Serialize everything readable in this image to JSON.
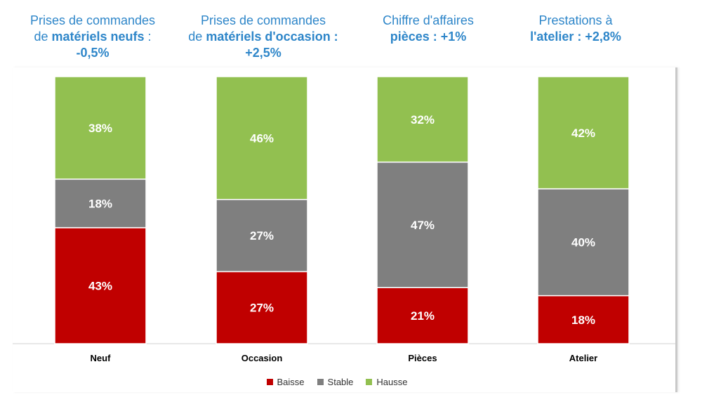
{
  "headers": [
    {
      "line1": "Prises de commandes",
      "line2_pre": "de ",
      "line2_bold": "matériels neufs",
      "line2_post": "  :",
      "line3": "-0,5%"
    },
    {
      "line1": "Prises de commandes",
      "line2_pre": "de ",
      "line2_bold": "matériels  d'occasion :",
      "line2_post": "",
      "line3": "+2,5%"
    },
    {
      "line1": "Chiffre d'affaires",
      "line2_pre": "",
      "line2_bold": "pièces : +1%",
      "line2_post": "",
      "line3": ""
    },
    {
      "line1": "Prestations à",
      "line2_pre": "",
      "line2_bold": "l'atelier : +2,8%",
      "line2_post": "",
      "line3": ""
    }
  ],
  "chart_data": {
    "type": "bar",
    "stacked": true,
    "percent_stacked": true,
    "categories": [
      "Neuf",
      "Occasion",
      "Pièces",
      "Atelier"
    ],
    "series": [
      {
        "name": "Baisse",
        "color": "#c00000",
        "values": [
          43,
          27,
          21,
          18
        ],
        "labels": [
          "43%",
          "27%",
          "21%",
          "18%"
        ]
      },
      {
        "name": "Stable",
        "color": "#7f7f7f",
        "values": [
          18,
          27,
          47,
          40
        ],
        "labels": [
          "18%",
          "27%",
          "47%",
          "40%"
        ]
      },
      {
        "name": "Hausse",
        "color": "#92c050",
        "values": [
          38,
          46,
          32,
          42
        ],
        "labels": [
          "38%",
          "46%",
          "32%",
          "42%"
        ]
      }
    ],
    "legend_position": "bottom",
    "grid": false
  }
}
